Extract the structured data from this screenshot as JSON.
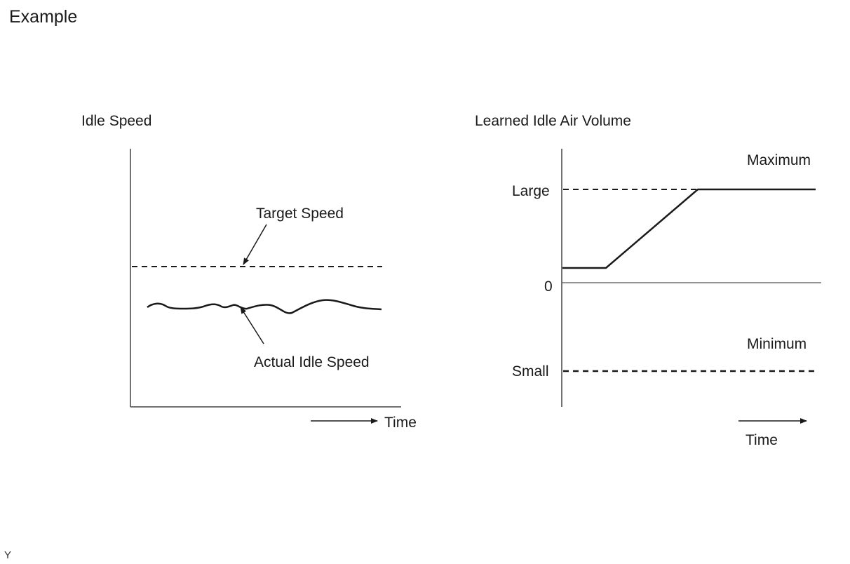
{
  "title": "Example",
  "footer_code": "Y",
  "left_chart": {
    "title": "Idle Speed",
    "target_label": "Target Speed",
    "actual_label": "Actual Idle Speed",
    "time_label": "Time"
  },
  "right_chart": {
    "title": "Learned Idle Air Volume",
    "max_label": "Maximum",
    "min_label": "Minimum",
    "large_label": "Large",
    "zero_label": "0",
    "small_label": "Small",
    "time_label": "Time"
  }
}
